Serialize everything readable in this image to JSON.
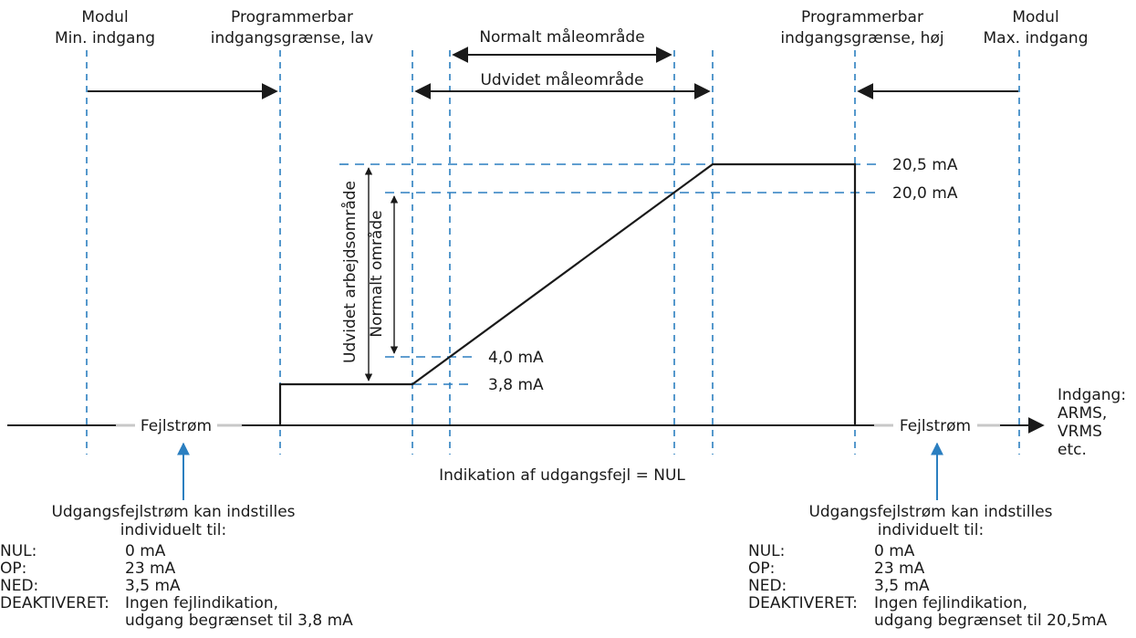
{
  "headers": {
    "module_min": [
      "Modul",
      "Min. indgang"
    ],
    "limit_low": [
      "Programmerbar",
      "indgangsgrænse, lav"
    ],
    "limit_high": [
      "Programmerbar",
      "indgangsgrænse, høj"
    ],
    "module_max": [
      "Modul",
      "Max. indgang"
    ]
  },
  "ranges": {
    "normal_measuring": "Normalt måleområde",
    "extended_measuring": "Udvidet måleområde"
  },
  "vertical_labels": {
    "extended_working": "Udvidet arbejdsområde",
    "normal_range": "Normalt område"
  },
  "levels": {
    "l_20_5": "20,5 mA",
    "l_20_0": "20,0 mA",
    "l_4_0": "4,0 mA",
    "l_3_8": "3,8 mA"
  },
  "fault_current": {
    "left": "Fejlstrøm",
    "right": "Fejlstrøm"
  },
  "axis_label": [
    "Indgang:",
    "ARMS,",
    "VRMS",
    "etc."
  ],
  "indication": "Indikation af udgangsfejl = NUL",
  "left_note": {
    "title": [
      "Udgangsfejlstrøm kan indstilles",
      "individuelt til:"
    ],
    "rows": [
      {
        "key": "NUL:",
        "value": "0 mA"
      },
      {
        "key": "OP:",
        "value": "23 mA"
      },
      {
        "key": "NED:",
        "value": "3,5 mA"
      },
      {
        "key": "DEAKTIVERET:",
        "value": "Ingen fejlindikation,"
      }
    ],
    "extra": "udgang begrænset til  3,8 mA"
  },
  "right_note": {
    "title": [
      "Udgangsfejlstrøm kan indstilles",
      "individuelt til:"
    ],
    "rows": [
      {
        "key": "NUL:",
        "value": "0 mA"
      },
      {
        "key": "OP:",
        "value": "23 mA"
      },
      {
        "key": "NED:",
        "value": "3,5 mA"
      },
      {
        "key": "DEAKTIVERET:",
        "value": "Ingen fejlindikation,"
      }
    ],
    "extra": "udgang begrænset til 20,5mA"
  },
  "colors": {
    "guide_blue": "#2b7fc0",
    "ink": "#1a1a1a",
    "fault_grey": "#c8c8c8"
  }
}
